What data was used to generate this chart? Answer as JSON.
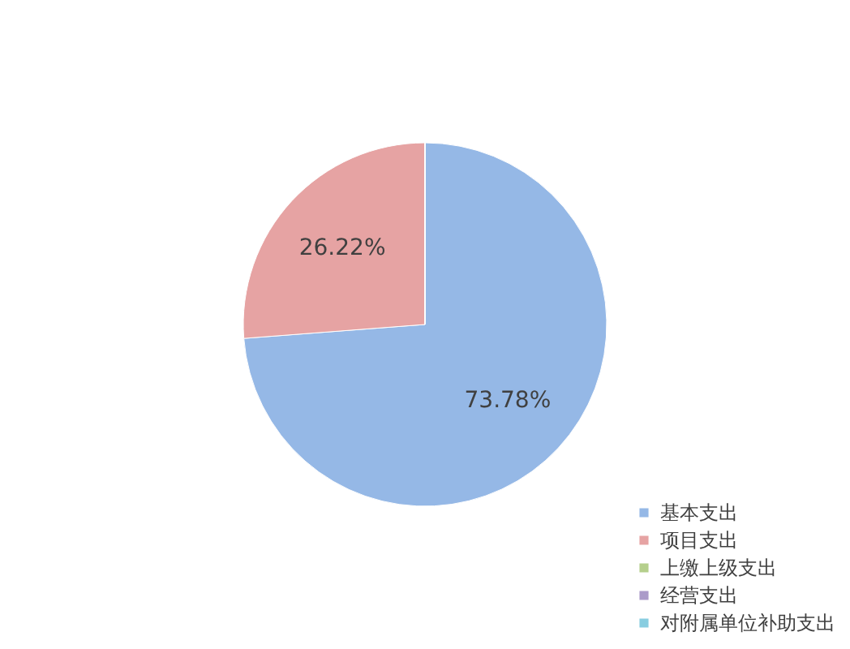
{
  "chart_data": {
    "type": "pie",
    "categories": [
      "基本支出",
      "项目支出",
      "上缴上级支出",
      "经营支出",
      "对附属单位补助支出"
    ],
    "values": [
      73.78,
      26.22,
      0,
      0,
      0
    ],
    "colors": [
      "#95b8e6",
      "#e6a3a3",
      "#b5cf8c",
      "#ab9bc9",
      "#88cde0"
    ],
    "value_labels": [
      "73.78%",
      "26.22%",
      null,
      null,
      null
    ],
    "legend": "bottom right"
  }
}
